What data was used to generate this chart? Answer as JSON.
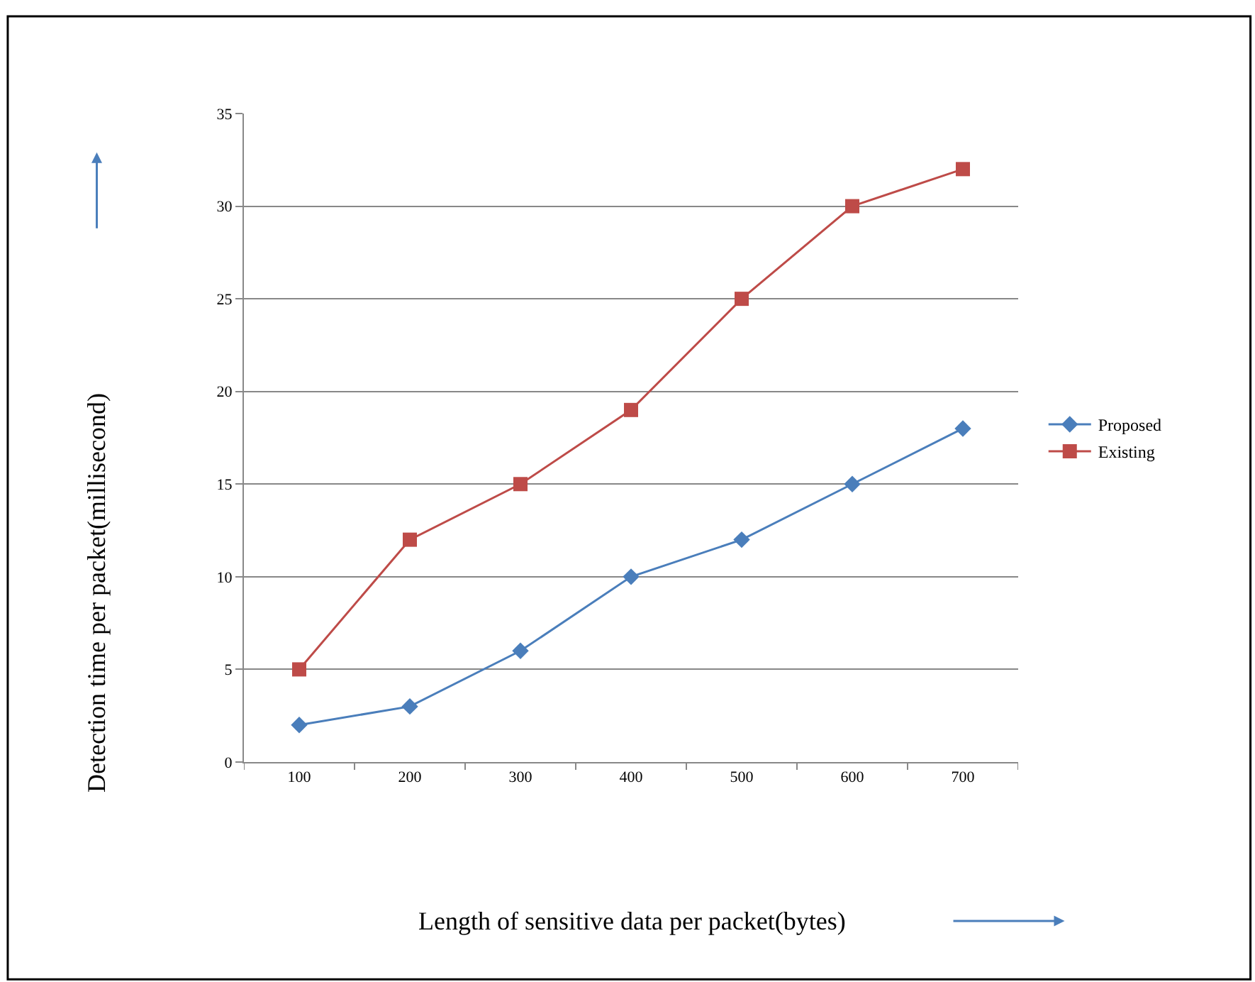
{
  "chart_data": {
    "type": "line",
    "xlabel": "Length of sensitive data per packet(bytes)",
    "ylabel": "Detection time per packet(millisecond)",
    "categories": [
      "100",
      "200",
      "300",
      "400",
      "500",
      "600",
      "700"
    ],
    "series": [
      {
        "name": "Proposed",
        "color": "#4a7ebb",
        "marker": "diamond",
        "values": [
          2,
          3,
          6,
          10,
          12,
          15,
          18
        ]
      },
      {
        "name": "Existing",
        "color": "#be4b48",
        "marker": "square",
        "values": [
          5,
          12,
          15,
          19,
          25,
          30,
          32
        ]
      }
    ],
    "ylim": [
      0,
      35
    ],
    "yticks": [
      0,
      5,
      10,
      15,
      20,
      25,
      30,
      35
    ],
    "grid": "y",
    "legend": "right",
    "line_style": "solid"
  }
}
